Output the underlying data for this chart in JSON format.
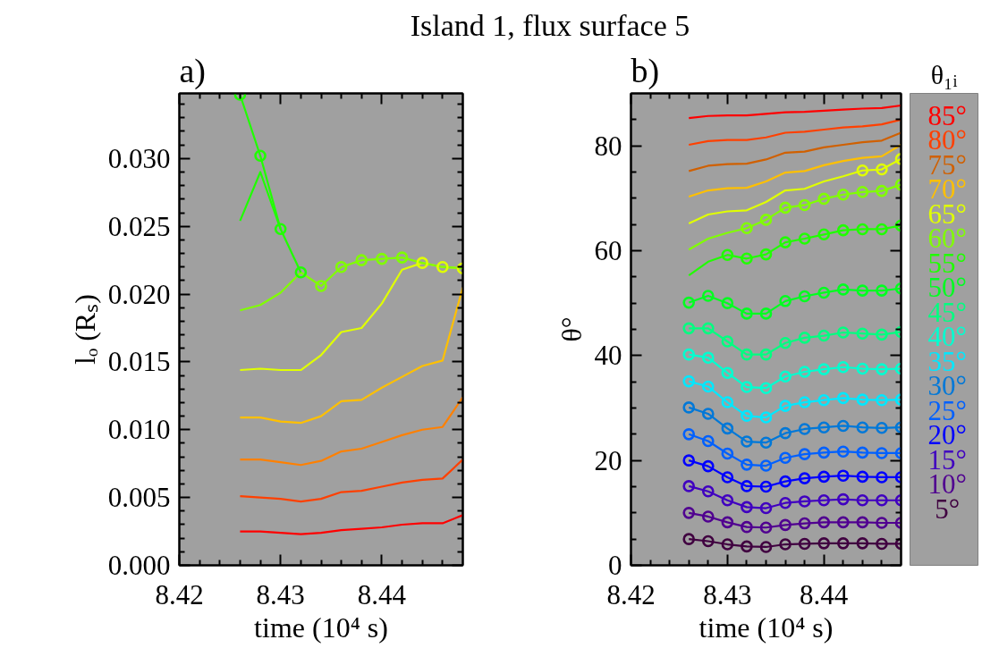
{
  "chart_data": [
    {
      "type": "line",
      "title": "Island 1, flux surface 5",
      "annotations": [
        "a)"
      ],
      "xlabel": "time (10⁴ s)",
      "ylabel": "lₒ (Rₛ)",
      "x": [
        8.426,
        8.428,
        8.43,
        8.432,
        8.434,
        8.436,
        8.438,
        8.44,
        8.442,
        8.444,
        8.446,
        8.448
      ],
      "xlim": [
        8.42,
        8.448
      ],
      "ylim": [
        0,
        0.0348
      ],
      "xticks": [
        8.42,
        {
          "value": 8.422,
          "label": null
        },
        {
          "value": 8.424,
          "label": null
        },
        {
          "value": 8.426,
          "label": null
        },
        {
          "value": 8.428,
          "label": null
        },
        8.43,
        {
          "value": 8.432,
          "label": null
        },
        {
          "value": 8.434,
          "label": null
        },
        {
          "value": 8.436,
          "label": null
        },
        {
          "value": 8.438,
          "label": null
        },
        8.44,
        {
          "value": 8.442,
          "label": null
        },
        {
          "value": 8.444,
          "label": null
        },
        {
          "value": 8.446,
          "label": null
        }
      ],
      "yticks": [
        {
          "value": 0,
          "label": "0.000"
        },
        {
          "value": 0.001,
          "label": null
        },
        {
          "value": 0.002,
          "label": null
        },
        {
          "value": 0.003,
          "label": null
        },
        {
          "value": 0.004,
          "label": null
        },
        {
          "value": 0.005,
          "label": "0.005"
        },
        {
          "value": 0.006,
          "label": null
        },
        {
          "value": 0.007,
          "label": null
        },
        {
          "value": 0.008,
          "label": null
        },
        {
          "value": 0.009,
          "label": null
        },
        {
          "value": 0.01,
          "label": "0.010"
        },
        {
          "value": 0.011,
          "label": null
        },
        {
          "value": 0.012,
          "label": null
        },
        {
          "value": 0.013,
          "label": null
        },
        {
          "value": 0.014,
          "label": null
        },
        {
          "value": 0.015,
          "label": "0.015"
        },
        {
          "value": 0.016,
          "label": null
        },
        {
          "value": 0.017,
          "label": null
        },
        {
          "value": 0.018,
          "label": null
        },
        {
          "value": 0.019,
          "label": null
        },
        {
          "value": 0.02,
          "label": "0.020"
        },
        {
          "value": 0.021,
          "label": null
        },
        {
          "value": 0.022,
          "label": null
        },
        {
          "value": 0.023,
          "label": null
        },
        {
          "value": 0.024,
          "label": null
        },
        {
          "value": 0.025,
          "label": "0.025"
        },
        {
          "value": 0.026,
          "label": null
        },
        {
          "value": 0.027,
          "label": null
        },
        {
          "value": 0.028,
          "label": null
        },
        {
          "value": 0.029,
          "label": null
        },
        {
          "value": 0.03,
          "label": "0.030"
        },
        {
          "value": 0.031,
          "label": null
        },
        {
          "value": 0.032,
          "label": null
        },
        {
          "value": 0.033,
          "label": null
        },
        {
          "value": 0.034,
          "label": null
        }
      ],
      "grid": false,
      "legend": false,
      "series": [
        {
          "color": "#ff0000",
          "values": [
            0.0025,
            0.0025,
            0.0024,
            0.0023,
            0.0024,
            0.0026,
            0.0027,
            0.0028,
            0.003,
            0.0031,
            0.0031,
            0.0037
          ]
        },
        {
          "color": "#ff4000",
          "values": [
            0.0051,
            0.005,
            0.0049,
            0.0047,
            0.0049,
            0.0054,
            0.0055,
            0.0058,
            0.0061,
            0.0063,
            0.0064,
            0.0078
          ]
        },
        {
          "color": "#ff8000",
          "values": [
            0.0078,
            0.0078,
            0.0076,
            0.0074,
            0.0077,
            0.0084,
            0.0086,
            0.0091,
            0.0096,
            0.01,
            0.0102,
            0.0124
          ]
        },
        {
          "color": "#ffc000",
          "values": [
            0.0109,
            0.0109,
            0.0106,
            0.0105,
            0.011,
            0.0121,
            0.0122,
            0.0131,
            0.0139,
            0.0147,
            0.0151,
            0.0205
          ]
        },
        {
          "color": "#e0ff00",
          "values": [
            0.0144,
            0.0145,
            0.0144,
            0.0144,
            0.0155,
            0.0172,
            0.0175,
            0.0193,
            0.0218,
            0.0223,
            0.022,
            0.0219
          ]
        },
        {
          "color": "#80ff00",
          "values": [
            0.0188,
            0.0192,
            0.0201,
            0.0216,
            0.0206,
            0.022,
            0.0225,
            0.0226,
            0.0227,
            0.0223,
            0.022,
            0.0219
          ]
        },
        {
          "color": "#20ff00",
          "x": [
            8.426,
            8.428,
            8.43
          ],
          "values": [
            0.0254,
            0.029,
            0.0248
          ]
        },
        {
          "type": "scatter",
          "color": "#80ff00",
          "marker": "circle",
          "x": [
            8.434,
            8.436,
            8.438,
            8.44,
            8.442
          ],
          "values": [
            0.0206,
            0.022,
            0.0225,
            0.0226,
            0.0227
          ]
        },
        {
          "type": "scatter",
          "color": "#e0ff00",
          "marker": "circle",
          "x": [
            8.444,
            8.446,
            8.448
          ],
          "values": [
            0.0223,
            0.022,
            0.0219
          ]
        },
        {
          "color": "#20ff00",
          "marker": "circle",
          "x": [
            8.426,
            8.428,
            8.43,
            8.432
          ],
          "values": [
            0.0347,
            0.0302,
            0.0248,
            0.0216
          ]
        }
      ]
    },
    {
      "type": "line",
      "annotations": [
        "b)"
      ],
      "xlabel": "time (10⁴ s)",
      "ylabel": "θ°",
      "legend_title": "θ₁ᵢ",
      "x": [
        8.426,
        8.428,
        8.43,
        8.432,
        8.434,
        8.436,
        8.438,
        8.44,
        8.442,
        8.444,
        8.446,
        8.448
      ],
      "xlim": [
        8.42,
        8.448
      ],
      "ylim": [
        0,
        90
      ],
      "xticks": [
        8.42,
        {
          "value": 8.422,
          "label": null
        },
        {
          "value": 8.424,
          "label": null
        },
        {
          "value": 8.426,
          "label": null
        },
        {
          "value": 8.428,
          "label": null
        },
        8.43,
        {
          "value": 8.432,
          "label": null
        },
        {
          "value": 8.434,
          "label": null
        },
        {
          "value": 8.436,
          "label": null
        },
        {
          "value": 8.438,
          "label": null
        },
        8.44,
        {
          "value": 8.442,
          "label": null
        },
        {
          "value": 8.444,
          "label": null
        },
        {
          "value": 8.446,
          "label": null
        }
      ],
      "yticks": [
        0,
        {
          "value": 5,
          "label": null
        },
        {
          "value": 10,
          "label": null
        },
        {
          "value": 15,
          "label": null
        },
        20,
        {
          "value": 25,
          "label": null
        },
        {
          "value": 30,
          "label": null
        },
        {
          "value": 35,
          "label": null
        },
        40,
        {
          "value": 45,
          "label": null
        },
        {
          "value": 50,
          "label": null
        },
        {
          "value": 55,
          "label": null
        },
        60,
        {
          "value": 65,
          "label": null
        },
        {
          "value": 70,
          "label": null
        },
        {
          "value": 75,
          "label": null
        },
        80,
        {
          "value": 85,
          "label": null
        }
      ],
      "grid": false,
      "legend": "right",
      "series": [
        {
          "name": "85°",
          "color": "#ff0000",
          "values": [
            85.3,
            85.7,
            85.8,
            85.8,
            86.1,
            86.4,
            86.5,
            86.7,
            86.9,
            87.1,
            87.2,
            87.7
          ]
        },
        {
          "name": "80°",
          "color": "#ff4000",
          "values": [
            80.2,
            80.9,
            81.1,
            81.1,
            81.6,
            82.5,
            82.7,
            83.1,
            83.5,
            83.7,
            84.1,
            85.0
          ]
        },
        {
          "name": "75°",
          "color": "#d06000",
          "values": [
            75.2,
            76.2,
            76.5,
            76.6,
            77.4,
            78.7,
            78.9,
            79.7,
            80.2,
            80.7,
            81.0,
            82.5
          ]
        },
        {
          "name": "70°",
          "color": "#ffc000",
          "values": [
            70.3,
            71.5,
            71.9,
            72.0,
            73.2,
            74.9,
            75.2,
            76.3,
            77.1,
            77.7,
            78.0,
            80.2
          ]
        },
        {
          "name": "65°",
          "color": "#e0ff00",
          "values": [
            65.2,
            66.9,
            67.5,
            67.7,
            69.3,
            71.5,
            71.8,
            73.2,
            74.2,
            75.3,
            75.5,
            77.5
          ]
        },
        {
          "name": "60°",
          "color": "#80ff00",
          "values": [
            60.2,
            62.3,
            63.4,
            64.3,
            65.9,
            68.2,
            68.7,
            69.9,
            70.7,
            71.2,
            71.4,
            72.6
          ]
        },
        {
          "name": "55°",
          "color": "#20ff00",
          "values": [
            55.3,
            57.9,
            59.2,
            58.5,
            59.3,
            61.6,
            62.3,
            63.1,
            63.9,
            64.1,
            64.1,
            64.8
          ]
        },
        {
          "name": "50°",
          "color": "#00ff20",
          "marker": "circle",
          "values": [
            50.1,
            51.4,
            50.0,
            48.0,
            48.0,
            50.4,
            51.3,
            52.0,
            52.6,
            52.4,
            52.4,
            52.8
          ]
        },
        {
          "name": "45°",
          "color": "#00ff80",
          "marker": "circle",
          "values": [
            45.2,
            45.2,
            42.7,
            40.2,
            40.2,
            42.4,
            43.4,
            43.8,
            44.4,
            44.2,
            44.0,
            44.5
          ]
        },
        {
          "name": "40°",
          "color": "#00ffd0",
          "marker": "circle",
          "values": [
            40.2,
            39.6,
            36.7,
            34.0,
            33.8,
            36.0,
            36.9,
            37.4,
            37.8,
            37.5,
            37.4,
            37.5
          ]
        },
        {
          "name": "35°",
          "color": "#00e8ff",
          "marker": "circle",
          "values": [
            35.1,
            34.1,
            31.1,
            28.5,
            28.2,
            30.4,
            31.1,
            31.5,
            31.9,
            31.6,
            31.5,
            31.6
          ]
        },
        {
          "name": "30°",
          "color": "#0078d8",
          "marker": "circle",
          "values": [
            30.1,
            28.9,
            26.1,
            23.6,
            23.4,
            25.2,
            26.0,
            26.3,
            26.6,
            26.3,
            26.2,
            26.3
          ]
        },
        {
          "name": "25°",
          "color": "#0060ff",
          "marker": "circle",
          "values": [
            25.0,
            23.7,
            21.3,
            19.2,
            19.0,
            20.5,
            21.2,
            21.5,
            21.7,
            21.5,
            21.4,
            21.4
          ]
        },
        {
          "name": "20°",
          "color": "#0000ff",
          "marker": "circle",
          "values": [
            20.0,
            18.9,
            16.8,
            15.1,
            15.0,
            16.0,
            16.6,
            16.9,
            17.1,
            16.9,
            16.8,
            16.8
          ]
        },
        {
          "name": "15°",
          "color": "#4000c0",
          "marker": "circle",
          "values": [
            15.1,
            14.1,
            12.4,
            11.1,
            10.9,
            11.9,
            12.2,
            12.4,
            12.6,
            12.4,
            12.4,
            12.4
          ]
        },
        {
          "name": "10°",
          "color": "#500090",
          "marker": "circle",
          "values": [
            10.0,
            9.3,
            8.2,
            7.3,
            7.2,
            7.7,
            8.0,
            8.2,
            8.2,
            8.2,
            8.1,
            8.1
          ]
        },
        {
          "name": "5°",
          "color": "#400040",
          "marker": "circle",
          "values": [
            5.0,
            4.6,
            4.0,
            3.6,
            3.5,
            4.0,
            4.1,
            4.2,
            4.2,
            4.2,
            4.1,
            4.1
          ]
        },
        {
          "type": "scatter",
          "color": "#e0ff00",
          "marker": "circle",
          "x": [
            8.444,
            8.446,
            8.448
          ],
          "values": [
            75.3,
            75.5,
            77.5
          ]
        },
        {
          "type": "scatter",
          "color": "#80ff00",
          "marker": "circle",
          "x": [
            8.432,
            8.434,
            8.436,
            8.438,
            8.44,
            8.442,
            8.444,
            8.446,
            8.448
          ],
          "values": [
            64.3,
            65.9,
            68.2,
            68.7,
            69.9,
            70.7,
            71.2,
            71.4,
            72.6
          ]
        },
        {
          "type": "scatter",
          "color": "#20ff00",
          "marker": "circle",
          "x": [
            8.43,
            8.432,
            8.434,
            8.436,
            8.438,
            8.44,
            8.442,
            8.444,
            8.446,
            8.448
          ],
          "values": [
            59.2,
            58.5,
            59.3,
            61.6,
            62.3,
            63.1,
            63.9,
            64.1,
            64.1,
            64.8
          ]
        }
      ]
    }
  ]
}
